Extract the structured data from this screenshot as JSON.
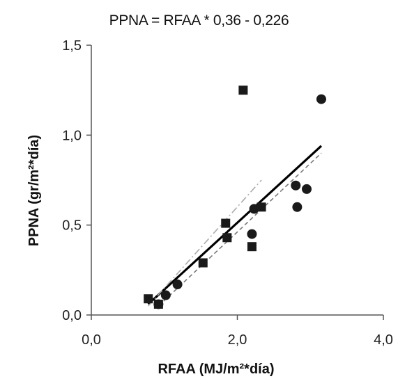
{
  "chart_data": {
    "type": "scatter",
    "title": "PPNA = RFAA * 0,36 - 0,226",
    "xlabel": "RFAA (MJ/m²*día)",
    "ylabel": "PPNA (gr/m²*día)",
    "xlim": [
      0,
      4
    ],
    "ylim": [
      0,
      1.5
    ],
    "x_ticks": [
      0,
      2,
      4
    ],
    "x_tick_labels": [
      "0,0",
      "2,0",
      "4,0"
    ],
    "y_ticks": [
      0,
      0.5,
      1.0,
      1.5
    ],
    "y_tick_labels": [
      "0,0",
      "0,5",
      "1,0",
      "1,5"
    ],
    "grid": false,
    "series": [
      {
        "marker": "square",
        "points": [
          {
            "x": 0.78,
            "y": 0.09
          },
          {
            "x": 0.92,
            "y": 0.06
          },
          {
            "x": 1.53,
            "y": 0.29
          },
          {
            "x": 1.84,
            "y": 0.51
          },
          {
            "x": 1.86,
            "y": 0.43
          },
          {
            "x": 2.08,
            "y": 1.25
          },
          {
            "x": 2.2,
            "y": 0.38
          },
          {
            "x": 2.33,
            "y": 0.6
          }
        ]
      },
      {
        "marker": "circle",
        "points": [
          {
            "x": 0.92,
            "y": 0.06
          },
          {
            "x": 1.02,
            "y": 0.11
          },
          {
            "x": 1.18,
            "y": 0.17
          },
          {
            "x": 2.2,
            "y": 0.45
          },
          {
            "x": 2.23,
            "y": 0.59
          },
          {
            "x": 2.8,
            "y": 0.72
          },
          {
            "x": 2.82,
            "y": 0.6
          },
          {
            "x": 2.95,
            "y": 0.7
          },
          {
            "x": 3.15,
            "y": 1.2
          }
        ]
      }
    ],
    "trendlines": [
      {
        "style": "solid",
        "x": [
          0.78,
          3.15
        ],
        "y": [
          0.06,
          0.94
        ]
      },
      {
        "style": "dashed",
        "x": [
          0.92,
          3.15
        ],
        "y": [
          0.05,
          0.9
        ]
      },
      {
        "style": "dash-dot",
        "x": [
          0.78,
          2.33
        ],
        "y": [
          0.05,
          0.75
        ]
      }
    ],
    "colors": {
      "points": "#1a1a1a",
      "axis": "#555555",
      "solid_line": "#000000",
      "dashed_line": "#777777",
      "dashdot_line": "#aaaaaa"
    }
  }
}
